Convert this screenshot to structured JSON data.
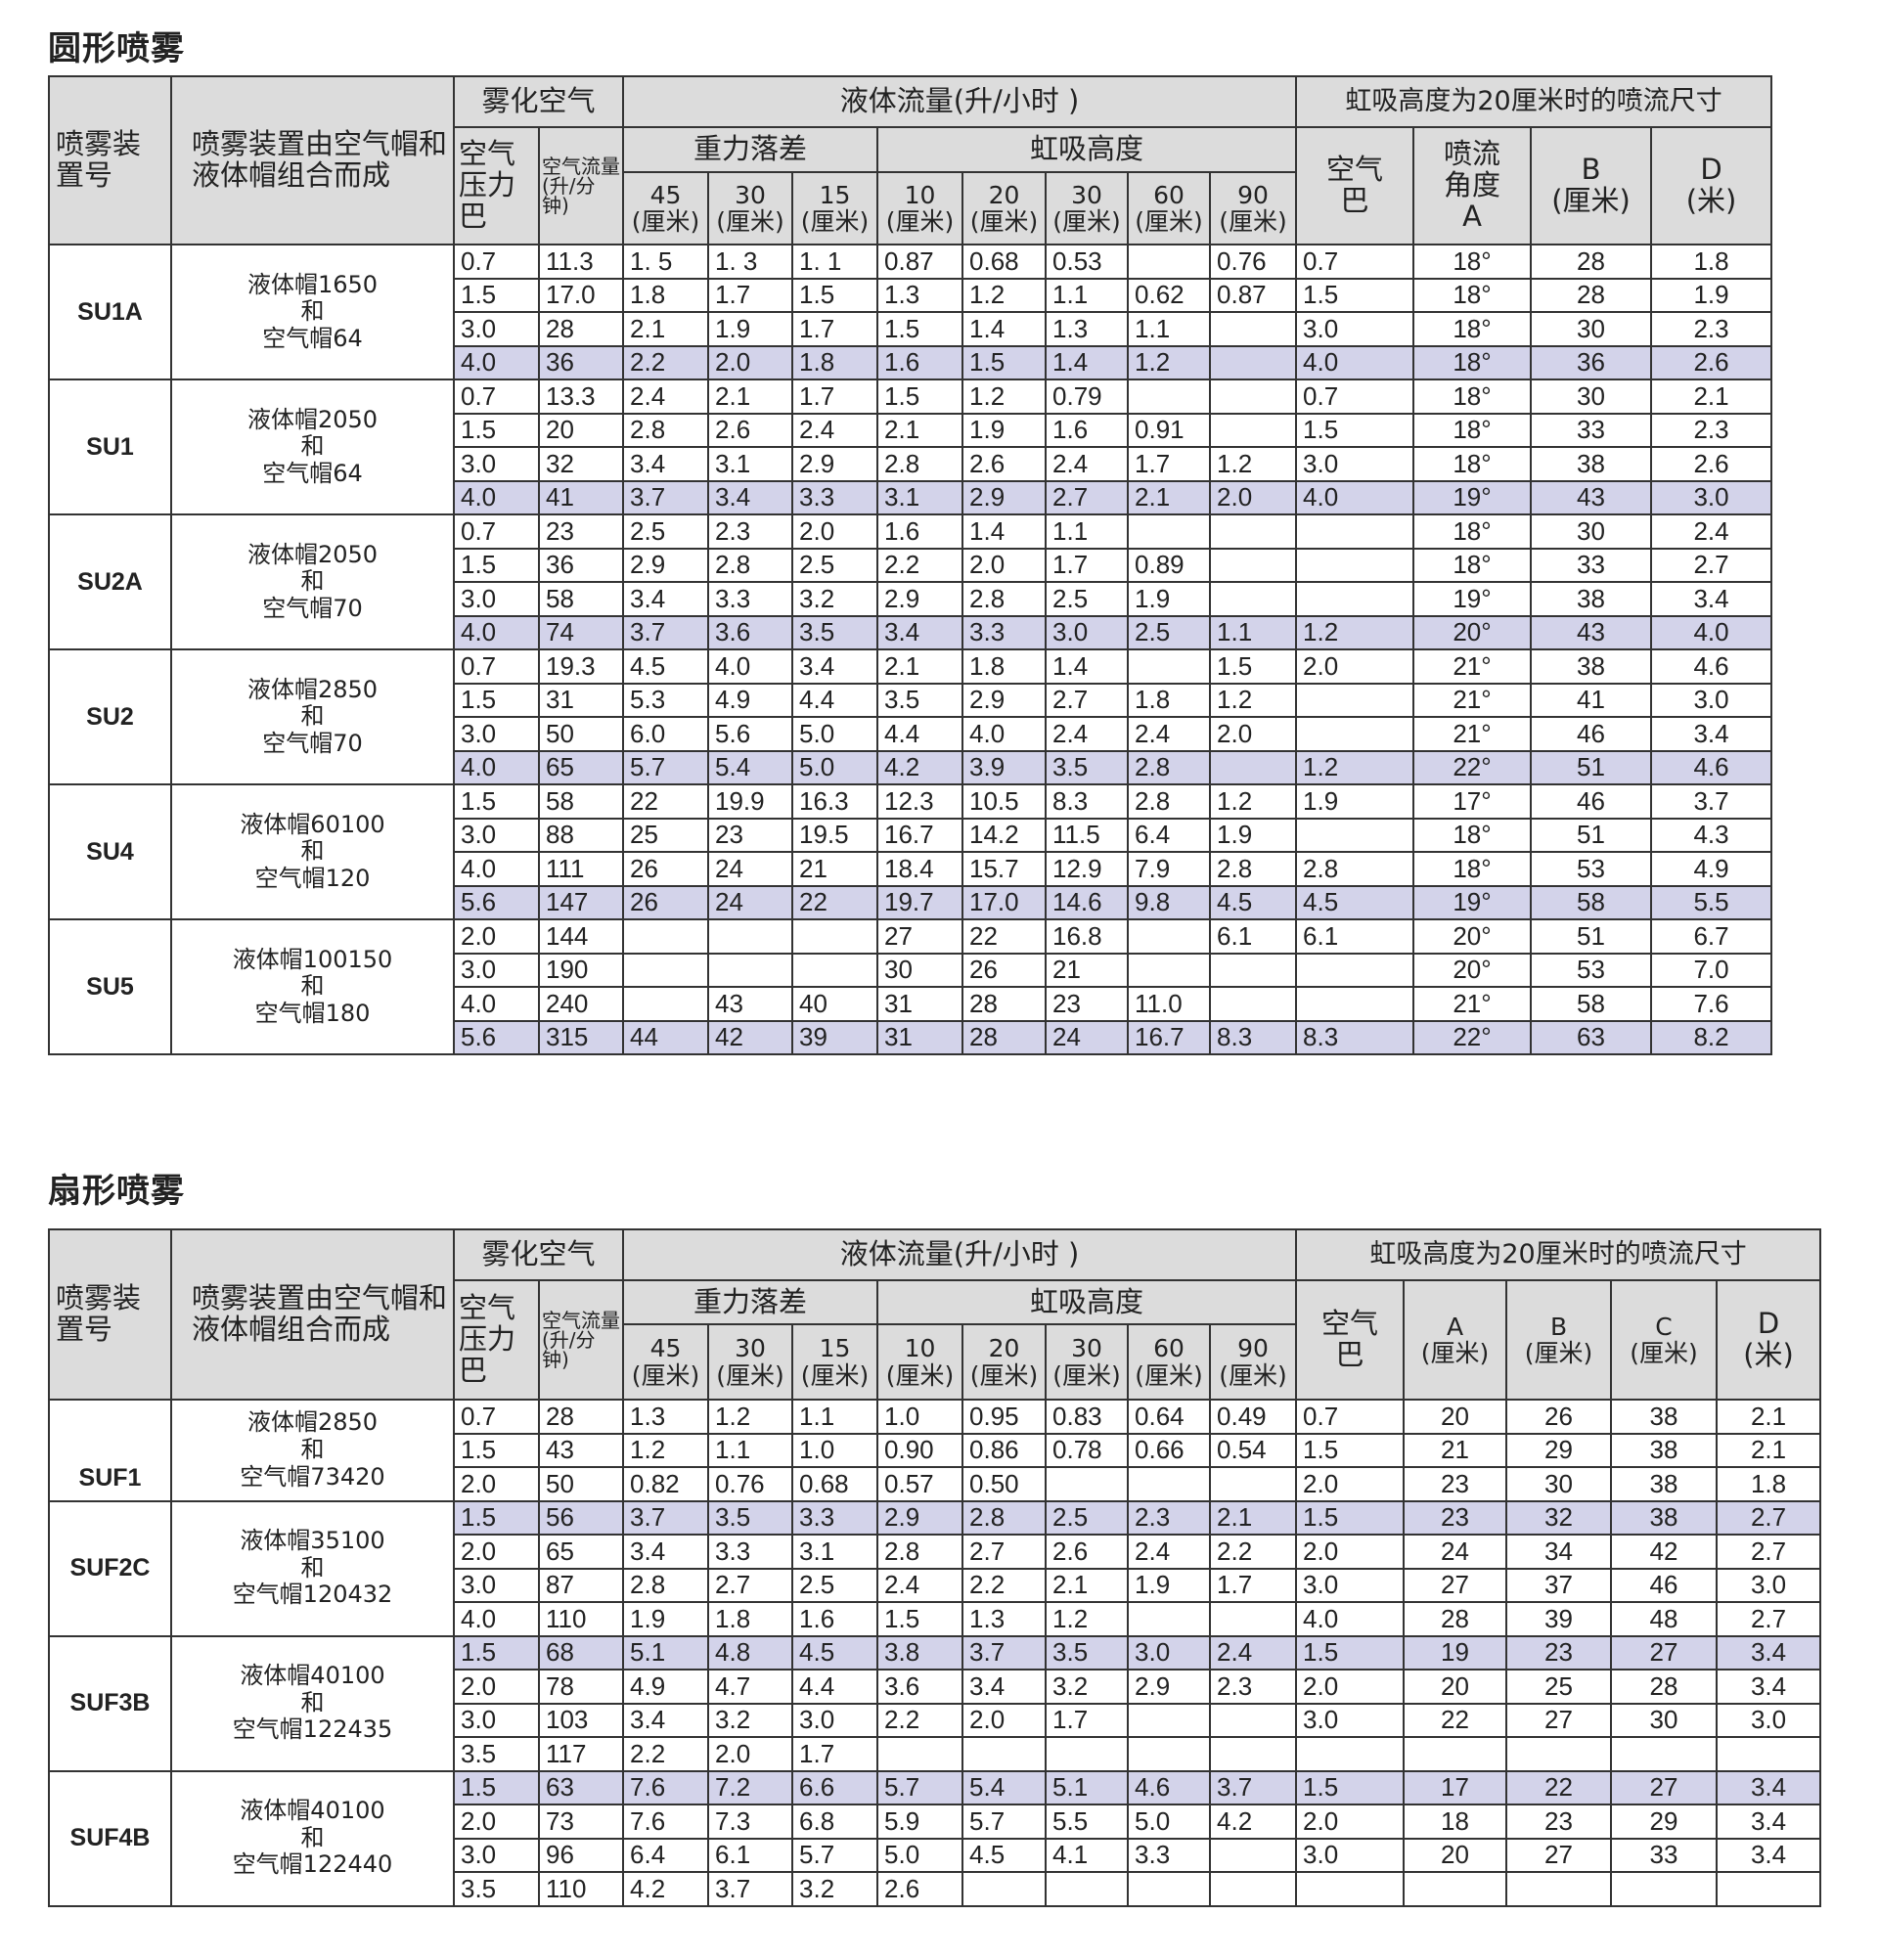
{
  "round": {
    "title": "圆形喷雾",
    "header": {
      "model": "喷雾装置号",
      "composition": "喷雾装置由空气帽和液体帽组合而成",
      "atomizing_air": "雾化空气",
      "liquid_flow": "液体流量(升/小时 )",
      "pattern": "虹吸高度为20厘米时的喷流尺寸",
      "air_pressure": "空气压力巴",
      "air_flow": "空气流量(升/分钟)",
      "gravity": "重力落差",
      "siphon": "虹吸高度",
      "heights": [
        "45",
        "30",
        "15",
        "10",
        "20",
        "30",
        "60",
        "90"
      ],
      "unit_cm": "(厘米)",
      "air_bar": "空气巴",
      "angle": "喷流角度A",
      "b": "B",
      "b_unit": "(厘米)",
      "d": "D",
      "d_unit": "(米)"
    },
    "groups": [
      {
        "model": "SU1A",
        "composition": "液体帽1650\n和\n空气帽64",
        "highlight": [
          3
        ],
        "rows": [
          [
            "0.7",
            "11.3",
            "1. 5",
            "1. 3",
            "1. 1",
            "0.87",
            "0.68",
            "0.53",
            "",
            "0.76",
            "0.7",
            "18°",
            "28",
            "1.8"
          ],
          [
            "1.5",
            "17.0",
            "1.8",
            "1.7",
            "1.5",
            "1.3",
            "1.2",
            "1.1",
            "0.62",
            "0.87",
            "1.5",
            "18°",
            "28",
            "1.9"
          ],
          [
            "3.0",
            "28",
            "2.1",
            "1.9",
            "1.7",
            "1.5",
            "1.4",
            "1.3",
            "1.1",
            "",
            "3.0",
            "18°",
            "30",
            "2.3"
          ],
          [
            "4.0",
            "36",
            "2.2",
            "2.0",
            "1.8",
            "1.6",
            "1.5",
            "1.4",
            "1.2",
            "",
            "4.0",
            "18°",
            "36",
            "2.6"
          ]
        ]
      },
      {
        "model": "SU1",
        "composition": "液体帽2050\n和\n空气帽64",
        "highlight": [
          3
        ],
        "rows": [
          [
            "0.7",
            "13.3",
            "2.4",
            "2.1",
            "1.7",
            "1.5",
            "1.2",
            "0.79",
            "",
            "",
            "0.7",
            "18°",
            "30",
            "2.1"
          ],
          [
            "1.5",
            "20",
            "2.8",
            "2.6",
            "2.4",
            "2.1",
            "1.9",
            "1.6",
            "0.91",
            "",
            "1.5",
            "18°",
            "33",
            "2.3"
          ],
          [
            "3.0",
            "32",
            "3.4",
            "3.1",
            "2.9",
            "2.8",
            "2.6",
            "2.4",
            "1.7",
            "1.2",
            "3.0",
            "18°",
            "38",
            "2.6"
          ],
          [
            "4.0",
            "41",
            "3.7",
            "3.4",
            "3.3",
            "3.1",
            "2.9",
            "2.7",
            "2.1",
            "2.0",
            "4.0",
            "19°",
            "43",
            "3.0"
          ]
        ]
      },
      {
        "model": "SU2A",
        "composition": "液体帽2050\n和\n空气帽70",
        "highlight": [
          3
        ],
        "rows": [
          [
            "0.7",
            "23",
            "2.5",
            "2.3",
            "2.0",
            "1.6",
            "1.4",
            "1.1",
            "",
            "",
            "",
            "18°",
            "30",
            "2.4"
          ],
          [
            "1.5",
            "36",
            "2.9",
            "2.8",
            "2.5",
            "2.2",
            "2.0",
            "1.7",
            "0.89",
            "",
            "",
            "18°",
            "33",
            "2.7"
          ],
          [
            "3.0",
            "58",
            "3.4",
            "3.3",
            "3.2",
            "2.9",
            "2.8",
            "2.5",
            "1.9",
            "",
            "",
            "19°",
            "38",
            "3.4"
          ],
          [
            "4.0",
            "74",
            "3.7",
            "3.6",
            "3.5",
            "3.4",
            "3.3",
            "3.0",
            "2.5",
            "1.1",
            "1.2",
            "20°",
            "43",
            "4.0"
          ]
        ]
      },
      {
        "model": "SU2",
        "composition": "液体帽2850\n和\n空气帽70",
        "highlight": [
          3
        ],
        "rows": [
          [
            "0.7",
            "19.3",
            "4.5",
            "4.0",
            "3.4",
            "2.1",
            "1.8",
            "1.4",
            "",
            "1.5",
            "2.0",
            "21°",
            "38",
            "4.6"
          ],
          [
            "1.5",
            "31",
            "5.3",
            "4.9",
            "4.4",
            "3.5",
            "2.9",
            "2.7",
            "1.8",
            "1.2",
            "",
            "21°",
            "41",
            "3.0"
          ],
          [
            "3.0",
            "50",
            "6.0",
            "5.6",
            "5.0",
            "4.4",
            "4.0",
            "2.4",
            "2.4",
            "2.0",
            "",
            "21°",
            "46",
            "3.4"
          ],
          [
            "4.0",
            "65",
            "5.7",
            "5.4",
            "5.0",
            "4.2",
            "3.9",
            "3.5",
            "2.8",
            "",
            "1.2",
            "22°",
            "51",
            "4.6"
          ]
        ]
      },
      {
        "model": "SU4",
        "composition": "液体帽60100\n和\n空气帽120",
        "highlight": [
          3
        ],
        "rows": [
          [
            "1.5",
            "58",
            "22",
            "19.9",
            "16.3",
            "12.3",
            "10.5",
            "8.3",
            "2.8",
            "1.2",
            "1.9",
            "17°",
            "46",
            "3.7"
          ],
          [
            "3.0",
            "88",
            "25",
            "23",
            "19.5",
            "16.7",
            "14.2",
            "11.5",
            "6.4",
            "1.9",
            "",
            "18°",
            "51",
            "4.3"
          ],
          [
            "4.0",
            "111",
            "26",
            "24",
            "21",
            "18.4",
            "15.7",
            "12.9",
            "7.9",
            "2.8",
            "2.8",
            "18°",
            "53",
            "4.9"
          ],
          [
            "5.6",
            "147",
            "26",
            "24",
            "22",
            "19.7",
            "17.0",
            "14.6",
            "9.8",
            "4.5",
            "4.5",
            "19°",
            "58",
            "5.5"
          ]
        ]
      },
      {
        "model": "SU5",
        "composition": "液体帽100150\n和\n空气帽180",
        "highlight": [
          3
        ],
        "rows": [
          [
            "2.0",
            "144",
            "",
            "",
            "",
            "27",
            "22",
            "16.8",
            "",
            "6.1",
            "6.1",
            "20°",
            "51",
            "6.7"
          ],
          [
            "3.0",
            "190",
            "",
            "",
            "",
            "30",
            "26",
            "21",
            "",
            "",
            "",
            "20°",
            "53",
            "7.0"
          ],
          [
            "4.0",
            "240",
            "",
            "43",
            "40",
            "31",
            "28",
            "23",
            "11.0",
            "",
            "",
            "21°",
            "58",
            "7.6"
          ],
          [
            "5.6",
            "315",
            "44",
            "42",
            "39",
            "31",
            "28",
            "24",
            "16.7",
            "8.3",
            "8.3",
            "22°",
            "63",
            "8.2"
          ]
        ]
      }
    ]
  },
  "fan": {
    "title": "扇形喷雾",
    "header": {
      "model": "喷雾装置号",
      "composition": "喷雾装置由空气帽和液体帽组合而成",
      "atomizing_air": "雾化空气",
      "liquid_flow": "液体流量(升/小时 )",
      "pattern": "虹吸高度为20厘米时的喷流尺寸",
      "air_pressure": "空气压力巴",
      "air_flow": "空气流量(升/分钟)",
      "gravity": "重力落差",
      "siphon": "虹吸高度",
      "heights": [
        "45",
        "30",
        "15",
        "10",
        "20",
        "30",
        "60",
        "90"
      ],
      "unit_cm": "(厘米)",
      "air_bar": "空气巴",
      "a": "A",
      "b": "B",
      "c": "C",
      "abc_unit": "(厘米)",
      "d": "D",
      "d_unit": "(米)"
    },
    "groups": [
      {
        "model": "SUF1",
        "composition": "液体帽2850\n和\n空气帽73420",
        "highlight": [],
        "rows": [
          [
            "0.7",
            "28",
            "1.3",
            "1.2",
            "1.1",
            "1.0",
            "0.95",
            "0.83",
            "0.64",
            "0.49",
            "0.7",
            "20",
            "26",
            "38",
            "2.1"
          ],
          [
            "1.5",
            "43",
            "1.2",
            "1.1",
            "1.0",
            "0.90",
            "0.86",
            "0.78",
            "0.66",
            "0.54",
            "1.5",
            "21",
            "29",
            "38",
            "2.1"
          ],
          [
            "2.0",
            "50",
            "0.82",
            "0.76",
            "0.68",
            "0.57",
            "0.50",
            "",
            "",
            "",
            "2.0",
            "23",
            "30",
            "38",
            "1.8"
          ]
        ]
      },
      {
        "model": "SUF2C",
        "composition": "液体帽35100\n和\n空气帽120432",
        "highlight": [
          0
        ],
        "rows": [
          [
            "1.5",
            "56",
            "3.7",
            "3.5",
            "3.3",
            "2.9",
            "2.8",
            "2.5",
            "2.3",
            "2.1",
            "1.5",
            "23",
            "32",
            "38",
            "2.7"
          ],
          [
            "2.0",
            "65",
            "3.4",
            "3.3",
            "3.1",
            "2.8",
            "2.7",
            "2.6",
            "2.4",
            "2.2",
            "2.0",
            "24",
            "34",
            "42",
            "2.7"
          ],
          [
            "3.0",
            "87",
            "2.8",
            "2.7",
            "2.5",
            "2.4",
            "2.2",
            "2.1",
            "1.9",
            "1.7",
            "3.0",
            "27",
            "37",
            "46",
            "3.0"
          ],
          [
            "4.0",
            "110",
            "1.9",
            "1.8",
            "1.6",
            "1.5",
            "1.3",
            "1.2",
            "",
            "",
            "4.0",
            "28",
            "39",
            "48",
            "2.7"
          ]
        ]
      },
      {
        "model": "SUF3B",
        "composition": "液体帽40100\n和\n空气帽122435",
        "highlight": [
          0
        ],
        "rows": [
          [
            "1.5",
            "68",
            "5.1",
            "4.8",
            "4.5",
            "3.8",
            "3.7",
            "3.5",
            "3.0",
            "2.4",
            "1.5",
            "19",
            "23",
            "27",
            "3.4"
          ],
          [
            "2.0",
            "78",
            "4.9",
            "4.7",
            "4.4",
            "3.6",
            "3.4",
            "3.2",
            "2.9",
            "2.3",
            "2.0",
            "20",
            "25",
            "28",
            "3.4"
          ],
          [
            "3.0",
            "103",
            "3.4",
            "3.2",
            "3.0",
            "2.2",
            "2.0",
            "1.7",
            "",
            "",
            "3.0",
            "22",
            "27",
            "30",
            "3.0"
          ],
          [
            "3.5",
            "117",
            "2.2",
            "2.0",
            "1.7",
            "",
            "",
            "",
            "",
            "",
            "",
            "",
            "",
            "",
            ""
          ]
        ]
      },
      {
        "model": "SUF4B",
        "composition": "液体帽40100\n和\n空气帽122440",
        "highlight": [
          0
        ],
        "rows": [
          [
            "1.5",
            "63",
            "7.6",
            "7.2",
            "6.6",
            "5.7",
            "5.4",
            "5.1",
            "4.6",
            "3.7",
            "1.5",
            "17",
            "22",
            "27",
            "3.4"
          ],
          [
            "2.0",
            "73",
            "7.6",
            "7.3",
            "6.8",
            "5.9",
            "5.7",
            "5.5",
            "5.0",
            "4.2",
            "2.0",
            "18",
            "23",
            "29",
            "3.4"
          ],
          [
            "3.0",
            "96",
            "6.4",
            "6.1",
            "5.7",
            "5.0",
            "4.5",
            "4.1",
            "3.3",
            "",
            "3.0",
            "20",
            "27",
            "33",
            "3.4"
          ],
          [
            "3.5",
            "110",
            "4.2",
            "3.7",
            "3.2",
            "2.6",
            "",
            "",
            "",
            "",
            "",
            "",
            "",
            "",
            ""
          ]
        ]
      }
    ]
  },
  "colors": {
    "header_bg": "#dcdcdc",
    "highlight_row": "#d3d3ea",
    "border": "#333333"
  }
}
